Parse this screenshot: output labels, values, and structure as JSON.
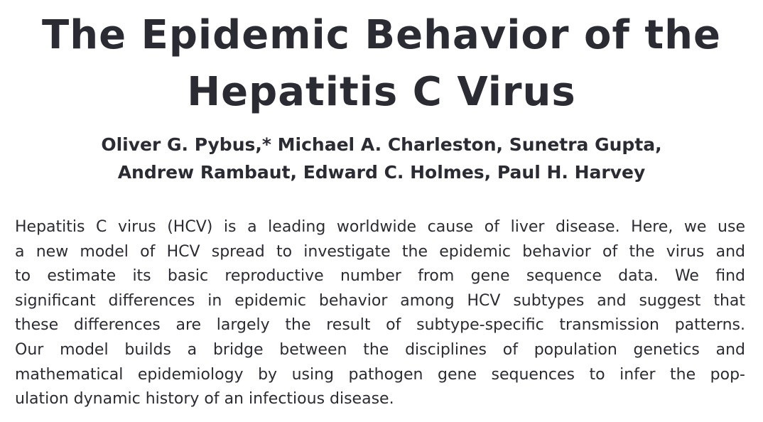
{
  "title": {
    "lines": [
      "The Epidemic Behavior of the",
      "Hepatitis C Virus"
    ]
  },
  "authors": {
    "lines": [
      "Oliver G. Pybus,* Michael A. Charleston, Sunetra Gupta,",
      "Andrew Rambaut, Edward C. Holmes, Paul H. Harvey"
    ]
  },
  "abstract": {
    "lines": [
      "Hepatitis C virus (HCV) is a leading worldwide cause of liver disease. Here, we use",
      "a new model of HCV spread to investigate the epidemic behavior of the virus and",
      "to estimate its basic reproductive number from gene sequence data. We find",
      "significant differences in epidemic behavior among HCV subtypes and suggest that",
      "these differences are largely the result of subtype-specific transmission patterns.",
      "Our model builds a bridge between the disciplines of population genetics and",
      "mathematical epidemiology by using pathogen gene sequences to infer the pop-",
      "ulation dynamic history of an infectious disease."
    ]
  }
}
